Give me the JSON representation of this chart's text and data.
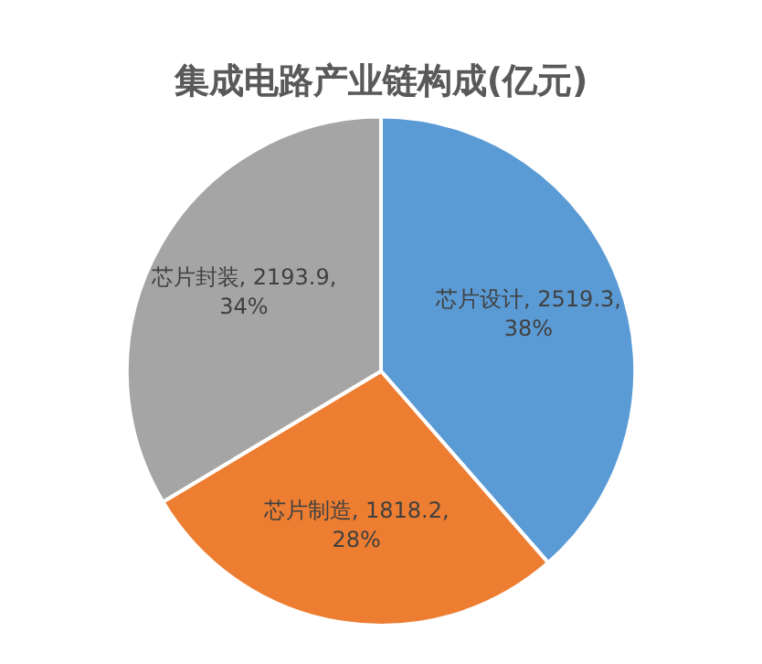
{
  "chart_data": {
    "type": "pie",
    "title": "集成电路产业链构成(亿元)",
    "categories": [
      "芯片设计",
      "芯片制造",
      "芯片封装"
    ],
    "values": [
      2519.3,
      1818.2,
      2193.9
    ],
    "colors": [
      "#5b9bd5",
      "#ed7d31",
      "#a5a5a5"
    ],
    "value_labels": [
      ", 2519.3, 38%",
      ", 1818.2, 28%",
      ", 2193.9, 34%"
    ],
    "legend": false
  }
}
